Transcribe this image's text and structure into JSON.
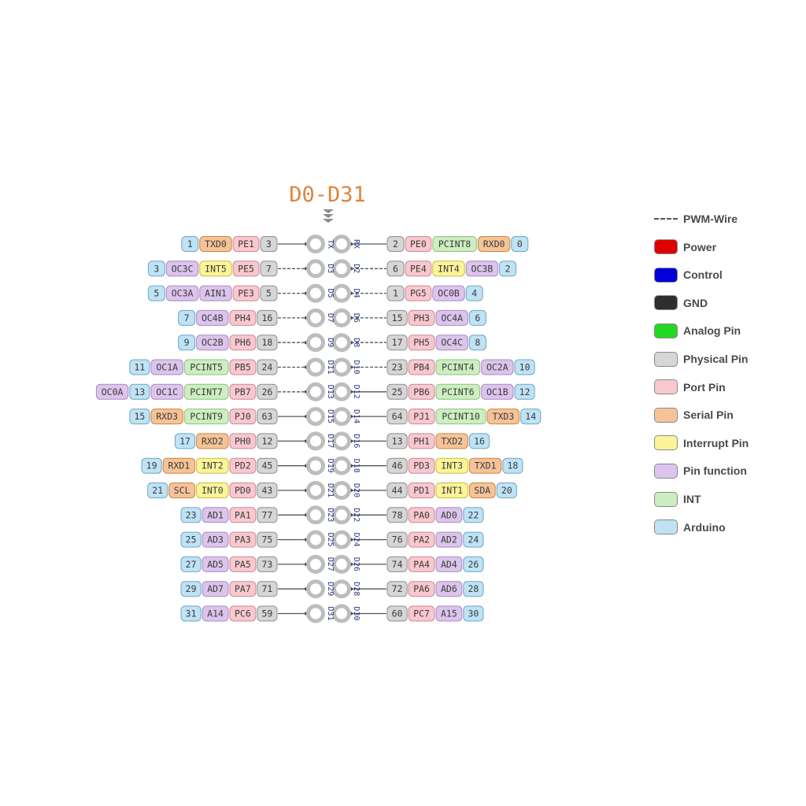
{
  "title": "D0-D31",
  "colors": {
    "arduino": "#bfe2f5",
    "port": "#f9c8cf",
    "serial": "#f6c398",
    "interrupt": "#fbf49a",
    "function": "#dcc4ec",
    "int": "#cdeec0",
    "physical": "#d6d6d6",
    "power": "#e00000",
    "control": "#0000d8",
    "gnd": "#2e2e2e",
    "analog": "#22d822"
  },
  "legend": [
    {
      "label": "PWM-Wire",
      "kind": "dash"
    },
    {
      "label": "Power",
      "kind": "power"
    },
    {
      "label": "Control",
      "kind": "control"
    },
    {
      "label": "GND",
      "kind": "gnd"
    },
    {
      "label": "Analog Pin",
      "kind": "analog"
    },
    {
      "label": "Physical Pin",
      "kind": "physical"
    },
    {
      "label": "Port Pin",
      "kind": "port"
    },
    {
      "label": "Serial Pin",
      "kind": "serial"
    },
    {
      "label": "Interrupt Pin",
      "kind": "interrupt"
    },
    {
      "label": "Pin function",
      "kind": "function"
    },
    {
      "label": "INT",
      "kind": "int"
    },
    {
      "label": "Arduino",
      "kind": "arduino"
    }
  ],
  "rows": [
    {
      "left": [
        [
          "OC0A",
          "function"
        ],
        [
          "13",
          "arduino"
        ],
        [
          "OC1C",
          "function"
        ],
        [
          "PCINT7",
          "int"
        ],
        [
          "PB7",
          "port"
        ],
        [
          "26",
          "physical"
        ]
      ],
      "left_pin": "D13",
      "left_pwm": true,
      "right_pin": "D12",
      "right_pwm": false,
      "right": [
        [
          "25",
          "physical"
        ],
        [
          "PB6",
          "port"
        ],
        [
          "PCINT6",
          "int"
        ],
        [
          "OC1B",
          "function"
        ],
        [
          "12",
          "arduino"
        ]
      ]
    }
  ]
}
